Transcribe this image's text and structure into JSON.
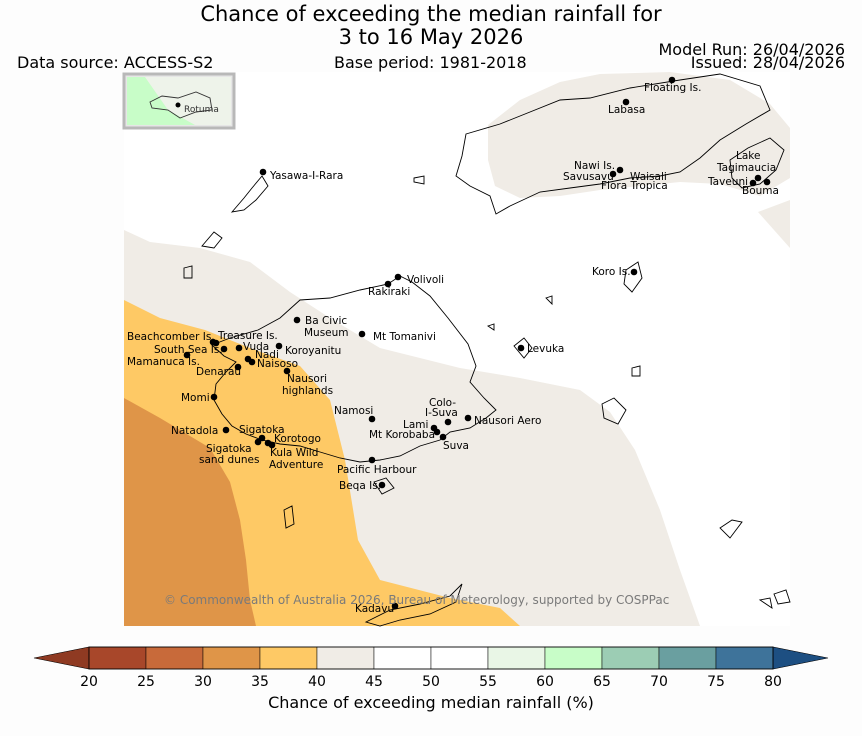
{
  "title": {
    "line1": "Chance of exceeding the median rainfall for",
    "line2": "3 to 16 May 2026"
  },
  "header": {
    "data_source": "Data source: ACCESS-S2",
    "base_period": "Base period: 1981-2018",
    "model_run": "Model Run: 26/04/2026",
    "issued": "Issued: 28/04/2026"
  },
  "inset": {
    "label": "Rotuma"
  },
  "copyright": "© Commonwealth of Australia 2026, Bureau of Meteorology, supported by COSPPac",
  "places": {
    "floating": "Floating Is.",
    "labasa": "Labasa",
    "yasawa": "Yasawa-I-Rara",
    "nawi": "Nawi Is.",
    "savusavu": "Savusavu",
    "waisali": "Waisali",
    "flora": "Flora Tropica",
    "lake": "Lake",
    "tagimaucia": "Tagimaucia",
    "taveuni": "Taveuni",
    "bouma": "Bouma",
    "koro": "Koro Is.",
    "volivoli": "Volivoli",
    "rakiraki": "Rakiraki",
    "bacivic1": "Ba Civic",
    "bacivic2": "Museum",
    "tomanivi": "Mt Tomanivi",
    "levuka": "Levuka",
    "beachcomber": "Beachcomber Is.",
    "treasure": "Treasure Is.",
    "southsea": "South Sea Is.",
    "vuda": "Vuda",
    "koroyanitu": "Koroyanitu",
    "mamanuca": "Mamanuca Is.",
    "nadi": "Nadi",
    "naisoso": "Naisoso",
    "denarau": "Denarau",
    "nausori_h1": "Nausori",
    "nausori_h2": "highlands",
    "momi": "Momi",
    "namosi": "Namosi",
    "colo1": "Colo-",
    "colo2": "I-Suva",
    "lami": "Lami",
    "nausori_aero": "Nausori Aero",
    "korobaba": "Mt Korobaba",
    "suva": "Suva",
    "natadola": "Natadola",
    "sigatoka": "Sigatoka",
    "korotogo": "Korotogo",
    "sig_dunes1": "Sigatoka",
    "sig_dunes2": "sand dunes",
    "kula1": "Kula Wild",
    "kula2": "Adventure",
    "pacific": "Pacific Harbour",
    "beqa": "Beqa Is.",
    "kadavu": "Kadavu"
  },
  "colorbar": {
    "ticks": [
      "20",
      "25",
      "30",
      "35",
      "40",
      "45",
      "50",
      "55",
      "60",
      "65",
      "70",
      "75",
      "80"
    ],
    "colors": [
      "#a8472a",
      "#c86a3a",
      "#df9548",
      "#fec965",
      "#f0ece6",
      "#ffffff",
      "#ffffff",
      "#e9f6e6",
      "#c8fdc8",
      "#9ccdb4",
      "#6a9fa0",
      "#3e739a"
    ],
    "low_color": "#8f3a22",
    "high_color": "#1d4f82",
    "label": "Chance of exceeding median rainfall (%)"
  }
}
